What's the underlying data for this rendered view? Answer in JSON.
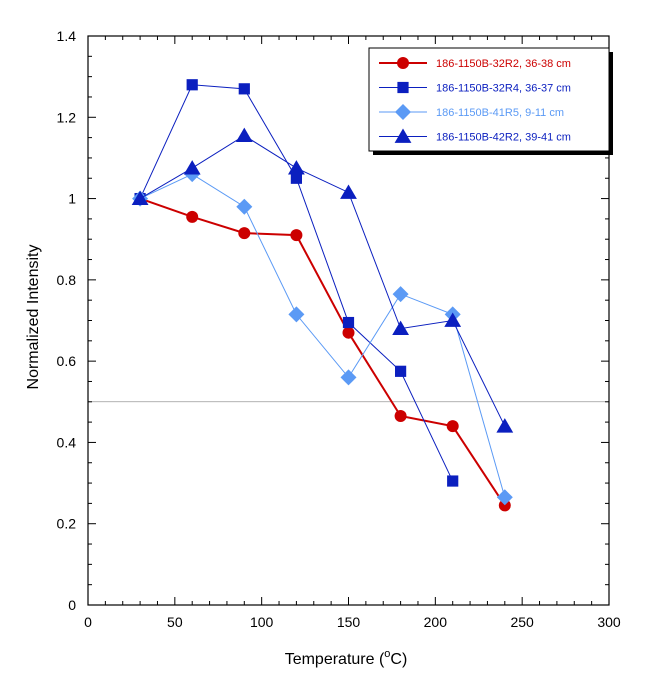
{
  "chart_data": {
    "type": "line",
    "xlabel": "Temperature (",
    "xlabel_sup": "o",
    "xlabel_unit": "C)",
    "ylabel": "Normalized Intensity",
    "xlim": [
      0,
      300
    ],
    "ylim": [
      0,
      1.4
    ],
    "x_ticks": [
      "0",
      "50",
      "100",
      "150",
      "200",
      "250",
      "300"
    ],
    "y_ticks": [
      "0",
      "0.2",
      "0.4",
      "0.6",
      "0.8",
      "1",
      "1.2",
      "1.4"
    ],
    "reference_line_y": 0.5,
    "legend_position": "top-right",
    "series": [
      {
        "name": "186-1150B-32R2, 36-38 cm",
        "color": "#cc0000",
        "marker": "circle",
        "line_width": 2,
        "x": [
          30,
          60,
          90,
          120,
          150,
          180,
          210,
          240
        ],
        "y": [
          1.0,
          0.955,
          0.915,
          0.91,
          0.67,
          0.465,
          0.44,
          0.245
        ]
      },
      {
        "name": "186-1150B-32R4, 36-37 cm",
        "color": "#0b1fbf",
        "marker": "square",
        "line_width": 1,
        "x": [
          30,
          60,
          90,
          120,
          150,
          180,
          210
        ],
        "y": [
          1.0,
          1.28,
          1.27,
          1.05,
          0.695,
          0.575,
          0.305
        ]
      },
      {
        "name": "186-1150B-41R5, 9-11 cm",
        "color": "#5b9af5",
        "marker": "diamond",
        "line_width": 1,
        "x": [
          30,
          60,
          90,
          120,
          150,
          180,
          210,
          240
        ],
        "y": [
          1.0,
          1.06,
          0.98,
          0.715,
          0.56,
          0.765,
          0.715,
          0.265
        ]
      },
      {
        "name": "186-1150B-42R2, 39-41 cm",
        "color": "#0b1fbf",
        "marker": "triangle",
        "line_width": 1,
        "x": [
          30,
          60,
          90,
          120,
          150,
          180,
          210,
          240
        ],
        "y": [
          1.0,
          1.075,
          1.155,
          1.075,
          1.015,
          0.68,
          0.7,
          0.44
        ]
      }
    ]
  }
}
